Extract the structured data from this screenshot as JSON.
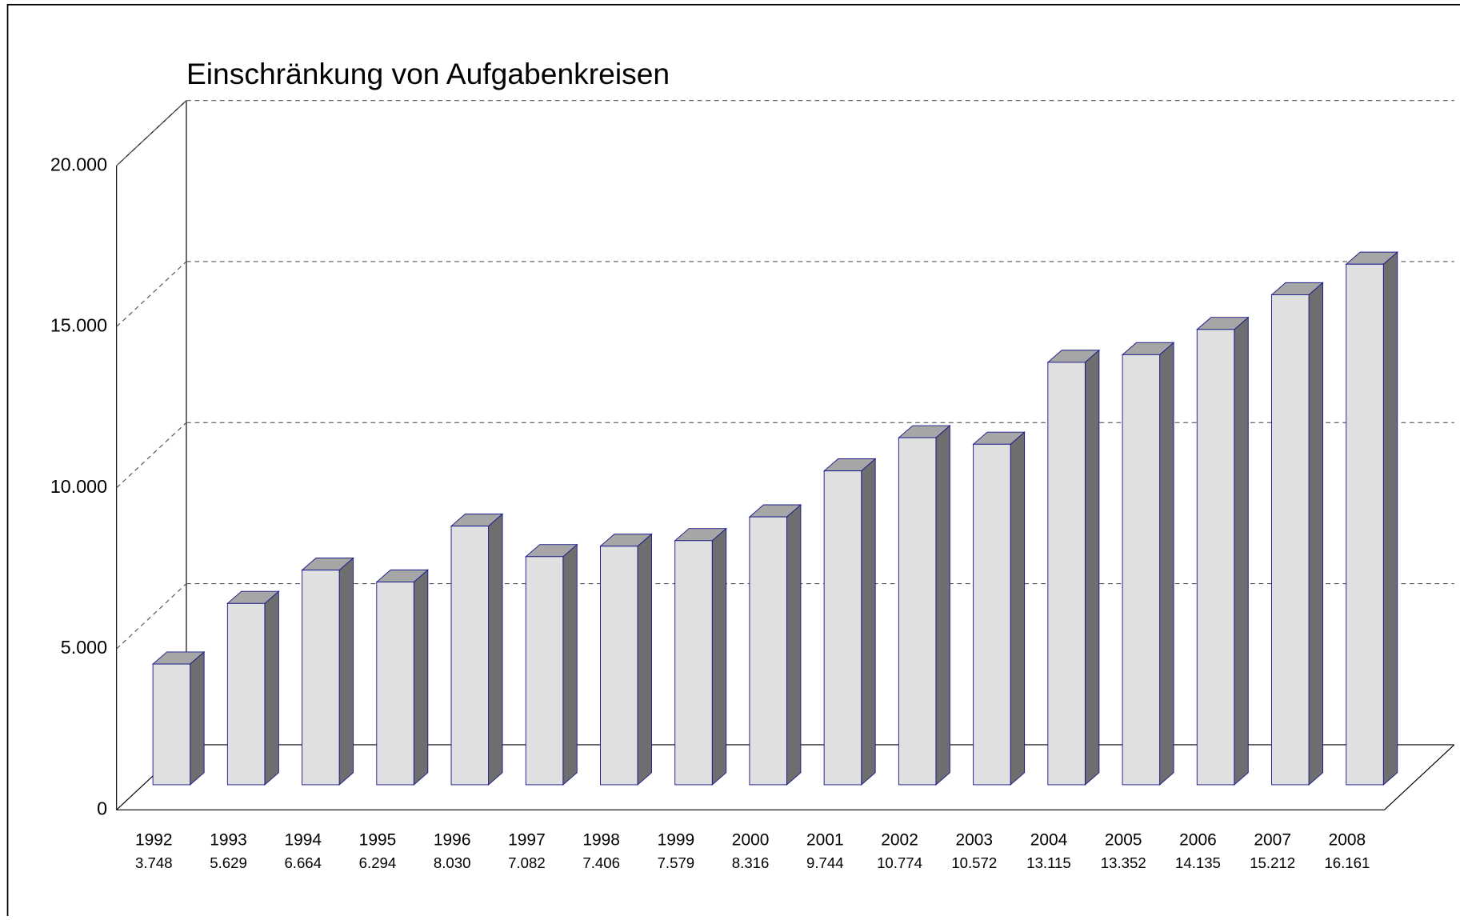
{
  "chart_data": {
    "type": "bar3d",
    "title": "Einschränkung von Aufgabenkreisen",
    "categories": [
      "1992",
      "1993",
      "1994",
      "1995",
      "1996",
      "1997",
      "1998",
      "1999",
      "2000",
      "2001",
      "2002",
      "2003",
      "2004",
      "2005",
      "2006",
      "2007",
      "2008"
    ],
    "values": [
      3748,
      5629,
      6664,
      6294,
      8030,
      7082,
      7406,
      7579,
      8316,
      9744,
      10774,
      10572,
      13115,
      13352,
      14135,
      15212,
      16161
    ],
    "value_labels": [
      "3.748",
      "5.629",
      "6.664",
      "6.294",
      "8.030",
      "7.082",
      "7.406",
      "7.579",
      "8.316",
      "9.744",
      "10.774",
      "10.572",
      "13.115",
      "13.352",
      "14.135",
      "15.212",
      "16.161"
    ],
    "color": "#e0e0e0",
    "ylim": [
      0,
      20000
    ],
    "yticks": [
      0,
      {
        "value": 5000,
        "label": "5.000"
      },
      {
        "value": 10000,
        "label": "10.000"
      },
      {
        "value": 15000,
        "label": "15.000"
      },
      {
        "value": 20000,
        "label": "20.000"
      }
    ],
    "grid": true
  }
}
